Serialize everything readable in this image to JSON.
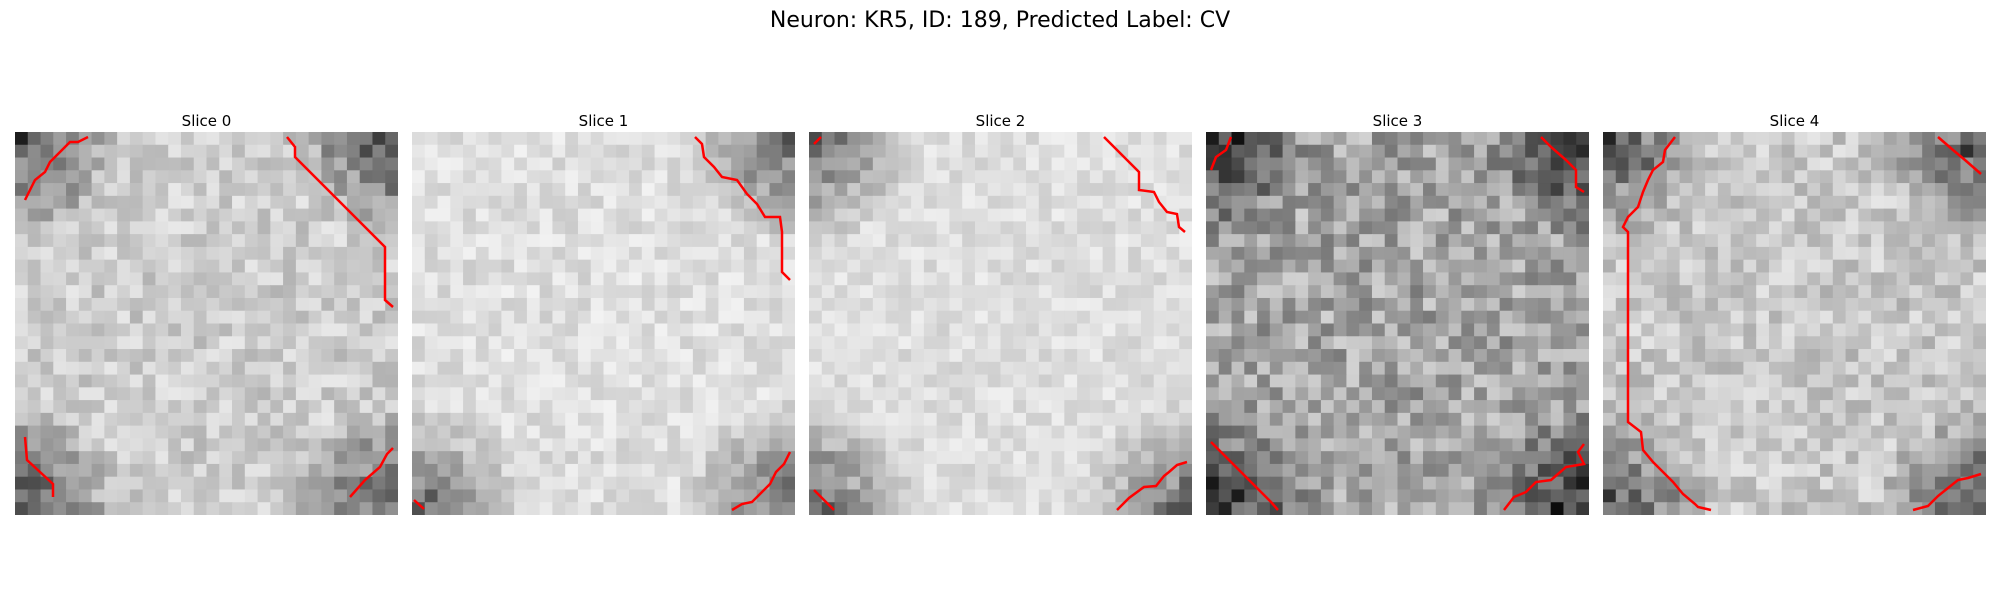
{
  "figure": {
    "title": "Neuron: KR5, ID: 189, Predicted Label: CV"
  },
  "panels": [
    {
      "title": "Slice 0",
      "dark_corners": [
        "top-left",
        "top-right",
        "bottom-left",
        "bottom-right"
      ],
      "contour_count": 4
    },
    {
      "title": "Slice 1",
      "dark_corners": [
        "top-right",
        "bottom-left",
        "bottom-right"
      ],
      "contour_count": 3
    },
    {
      "title": "Slice 2",
      "dark_corners": [
        "top-left",
        "bottom-left",
        "bottom-right"
      ],
      "contour_count": 4
    },
    {
      "title": "Slice 3",
      "dark_corners": [
        "top-left",
        "top-right",
        "bottom-left",
        "bottom-right"
      ],
      "contour_count": 4
    },
    {
      "title": "Slice 4",
      "dark_corners": [
        "top-left",
        "top-right",
        "bottom-left",
        "bottom-right"
      ],
      "contour_count": 3
    }
  ],
  "colors": {
    "contour": "#ff0000",
    "colormap": "grayscale"
  }
}
